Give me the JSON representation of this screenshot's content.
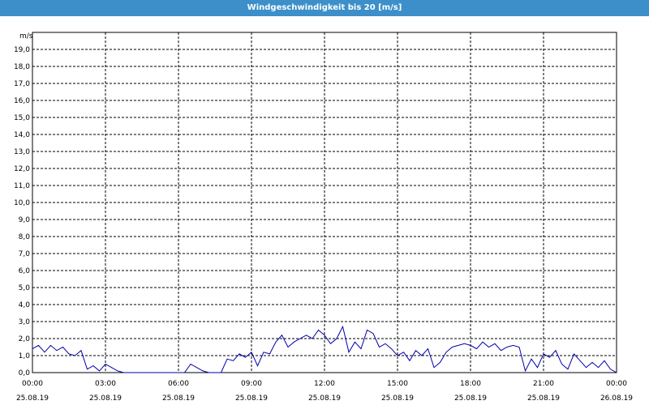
{
  "window": {
    "title": "Windgeschwindigkeit bis 20 [m/s]"
  },
  "chart_data": {
    "type": "line",
    "title": "Windgeschwindigkeit bis 20 [m/s]",
    "ylabel": "m/s",
    "xlabel": "",
    "ylim": [
      0,
      20
    ],
    "xlim": [
      "25.08.19 00:00",
      "26.08.19 00:00"
    ],
    "y_ticks": [
      "0,0",
      "1,0",
      "2,0",
      "3,0",
      "4,0",
      "5,0",
      "6,0",
      "7,0",
      "8,0",
      "9,0",
      "10,0",
      "11,0",
      "12,0",
      "13,0",
      "14,0",
      "15,0",
      "16,0",
      "17,0",
      "18,0",
      "19,0"
    ],
    "x_ticks": [
      {
        "time": "00:00",
        "date": "25.08.19"
      },
      {
        "time": "03:00",
        "date": "25.08.19"
      },
      {
        "time": "06:00",
        "date": "25.08.19"
      },
      {
        "time": "09:00",
        "date": "25.08.19"
      },
      {
        "time": "12:00",
        "date": "25.08.19"
      },
      {
        "time": "15:00",
        "date": "25.08.19"
      },
      {
        "time": "18:00",
        "date": "25.08.19"
      },
      {
        "time": "21:00",
        "date": "25.08.19"
      },
      {
        "time": "00:00",
        "date": "26.08.19"
      }
    ],
    "grid": true,
    "line_color": "#0000aa",
    "series": [
      {
        "x_hours": [
          0,
          0.25,
          0.5,
          0.75,
          1,
          1.25,
          1.5,
          1.75,
          2,
          2.25,
          2.5,
          2.75,
          3,
          3.25,
          3.5,
          3.75,
          4,
          4.25,
          4.5,
          4.75,
          5,
          5.25,
          5.5,
          5.75,
          6,
          6.25,
          6.5,
          6.75,
          7,
          7.25,
          7.5,
          7.75,
          8,
          8.25,
          8.5,
          8.75,
          9,
          9.25,
          9.5,
          9.75,
          10,
          10.25,
          10.5,
          10.75,
          11,
          11.25,
          11.5,
          11.75,
          12,
          12.25,
          12.5,
          12.75,
          13,
          13.25,
          13.5,
          13.75,
          14,
          14.25,
          14.5,
          14.75,
          15,
          15.25,
          15.5,
          15.75,
          16,
          16.25,
          16.5,
          16.75,
          17,
          17.25,
          17.5,
          17.75,
          18,
          18.25,
          18.5,
          18.75,
          19,
          19.25,
          19.5,
          19.75,
          20,
          20.25,
          20.5,
          20.75,
          21,
          21.25,
          21.5,
          21.75,
          22,
          22.25,
          22.5,
          22.75,
          23,
          23.25,
          23.5,
          23.75,
          24
        ],
        "values": [
          1.4,
          1.6,
          1.2,
          1.6,
          1.3,
          1.5,
          1.1,
          1.0,
          1.3,
          0.2,
          0.4,
          0.1,
          0.5,
          0.3,
          0.1,
          0.0,
          0.0,
          0.0,
          0.0,
          0.0,
          0.0,
          0.0,
          0.0,
          0.0,
          0.0,
          0.0,
          0.5,
          0.3,
          0.1,
          0.0,
          0.0,
          0.0,
          0.8,
          0.7,
          1.1,
          0.9,
          1.2,
          0.4,
          1.2,
          1.1,
          1.8,
          2.2,
          1.5,
          1.8,
          2.0,
          2.2,
          2.0,
          2.5,
          2.2,
          1.7,
          2.0,
          2.7,
          1.2,
          1.8,
          1.4,
          2.5,
          2.3,
          1.5,
          1.7,
          1.4,
          1.0,
          1.2,
          0.7,
          1.3,
          1.0,
          1.4,
          0.3,
          0.6,
          1.2,
          1.5,
          1.6,
          1.7,
          1.6,
          1.4,
          1.8,
          1.5,
          1.7,
          1.3,
          1.5,
          1.6,
          1.5,
          0.1,
          0.8,
          0.3,
          1.1,
          0.9,
          1.3,
          0.5,
          0.2,
          1.1,
          0.7,
          0.3,
          0.6,
          0.3,
          0.7,
          0.2,
          0.0
        ]
      }
    ]
  }
}
